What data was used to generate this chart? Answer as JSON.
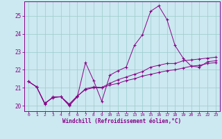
{
  "xlabel": "Windchill (Refroidissement éolien,°C)",
  "background_color": "#cce8f0",
  "line_color": "#880088",
  "grid_color": "#99cccc",
  "xlim": [
    -0.5,
    23.5
  ],
  "ylim": [
    19.7,
    25.8
  ],
  "yticks": [
    20,
    21,
    22,
    23,
    24,
    25
  ],
  "xticks": [
    0,
    1,
    2,
    3,
    4,
    5,
    6,
    7,
    8,
    9,
    10,
    11,
    12,
    13,
    14,
    15,
    16,
    17,
    18,
    19,
    20,
    21,
    22,
    23
  ],
  "series": [
    {
      "x": [
        0,
        1,
        2,
        3,
        4,
        5,
        6,
        7,
        8,
        9,
        10,
        11,
        12,
        13,
        14,
        15,
        16,
        17,
        18,
        19,
        20,
        21,
        22,
        23
      ],
      "y": [
        21.35,
        21.05,
        20.1,
        20.5,
        20.5,
        20.0,
        20.5,
        22.4,
        21.4,
        20.25,
        21.7,
        21.95,
        22.15,
        23.35,
        23.95,
        25.25,
        25.55,
        24.8,
        23.35,
        22.65,
        22.2,
        22.15,
        22.45,
        22.5
      ]
    },
    {
      "x": [
        0,
        1,
        2,
        3,
        4,
        5,
        6,
        7,
        8,
        9,
        10,
        11,
        12,
        13,
        14,
        15,
        16,
        17,
        18,
        19,
        20,
        21,
        22,
        23
      ],
      "y": [
        21.35,
        21.05,
        20.15,
        20.45,
        20.5,
        20.1,
        20.55,
        20.9,
        21.0,
        21.0,
        21.15,
        21.25,
        21.4,
        21.5,
        21.65,
        21.75,
        21.85,
        21.95,
        22.0,
        22.1,
        22.2,
        22.25,
        22.35,
        22.4
      ]
    },
    {
      "x": [
        0,
        1,
        2,
        3,
        4,
        5,
        6,
        7,
        8,
        9,
        10,
        11,
        12,
        13,
        14,
        15,
        16,
        17,
        18,
        19,
        20,
        21,
        22,
        23
      ],
      "y": [
        21.35,
        21.05,
        20.12,
        20.47,
        20.5,
        20.05,
        20.52,
        20.95,
        21.05,
        21.02,
        21.25,
        21.45,
        21.6,
        21.75,
        21.9,
        22.15,
        22.25,
        22.35,
        22.35,
        22.5,
        22.55,
        22.6,
        22.65,
        22.7
      ]
    }
  ]
}
